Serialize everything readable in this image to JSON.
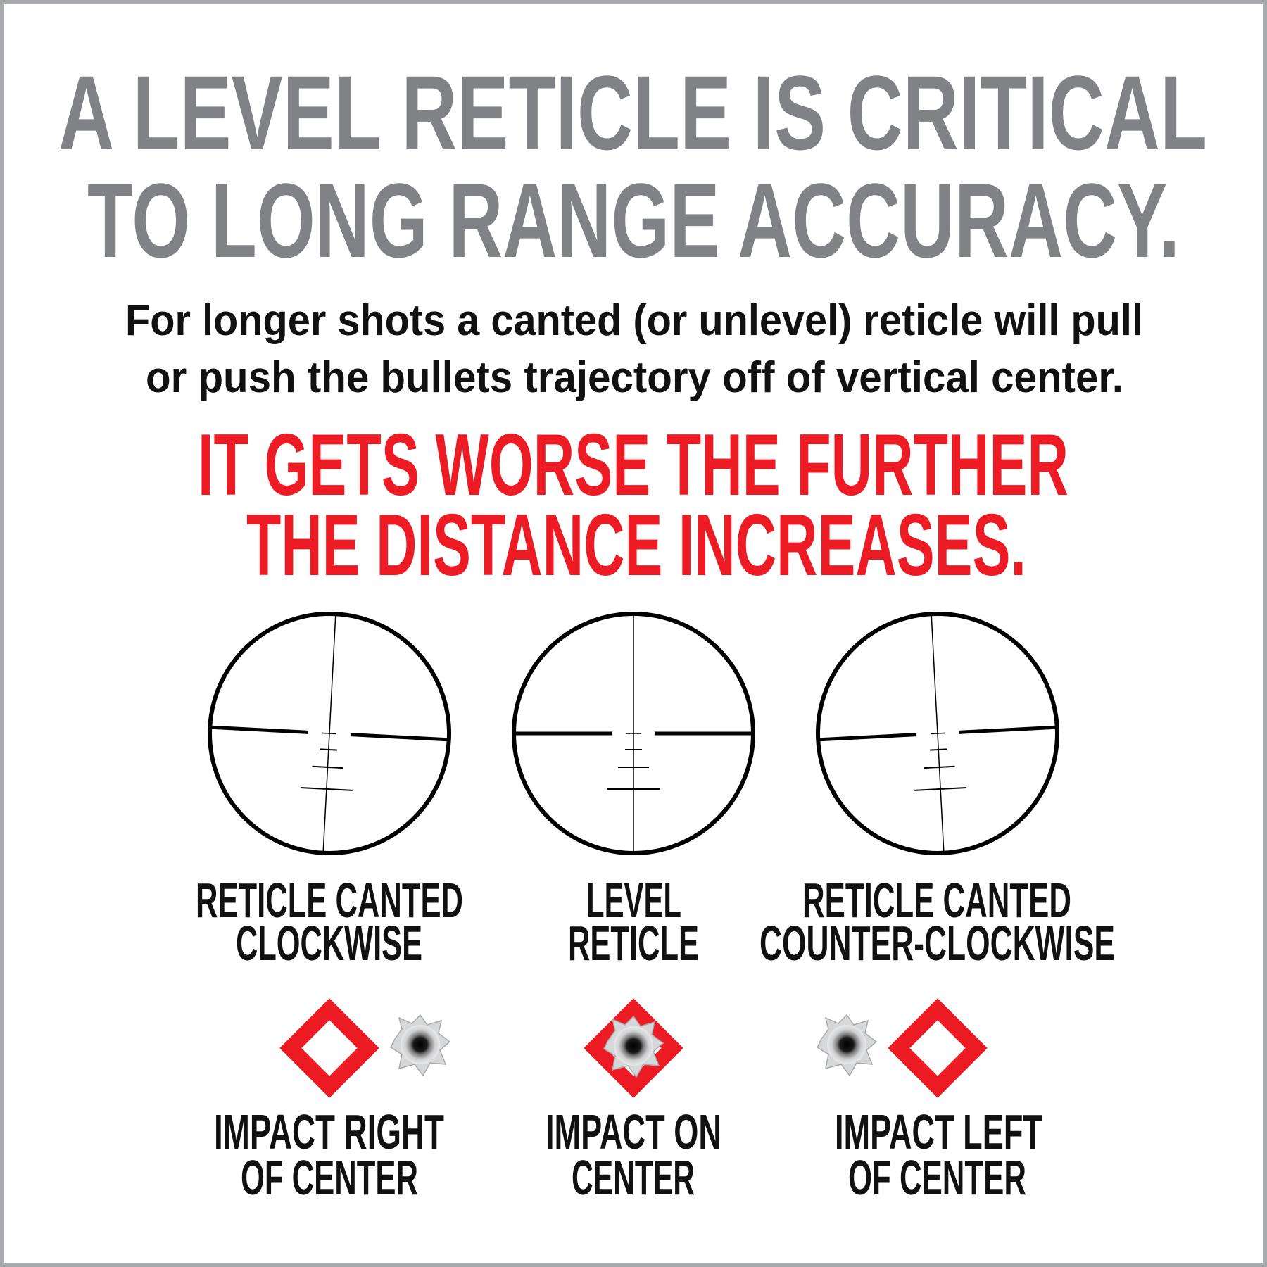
{
  "header": {
    "title": [
      "A LEVEL RETICLE IS CRITICAL",
      "TO LONG RANGE ACCURACY."
    ],
    "subtitle": [
      "For longer shots a canted (or unlevel) reticle will pull",
      "or push the bullets trajectory off of vertical center."
    ],
    "warning": [
      "IT GETS WORSE THE FURTHER",
      "THE DISTANCE INCREASES."
    ]
  },
  "panels": [
    {
      "reticle_label": [
        "RETICLE CANTED",
        "CLOCKWISE"
      ],
      "impact_label": [
        "IMPACT RIGHT",
        "OF CENTER"
      ]
    },
    {
      "reticle_label": [
        "LEVEL",
        "RETICLE"
      ],
      "impact_label": [
        "IMPACT ON",
        "CENTER"
      ]
    },
    {
      "reticle_label": [
        "RETICLE CANTED",
        "COUNTER-CLOCKWISE"
      ],
      "impact_label": [
        "IMPACT LEFT",
        "OF CENTER"
      ]
    }
  ]
}
